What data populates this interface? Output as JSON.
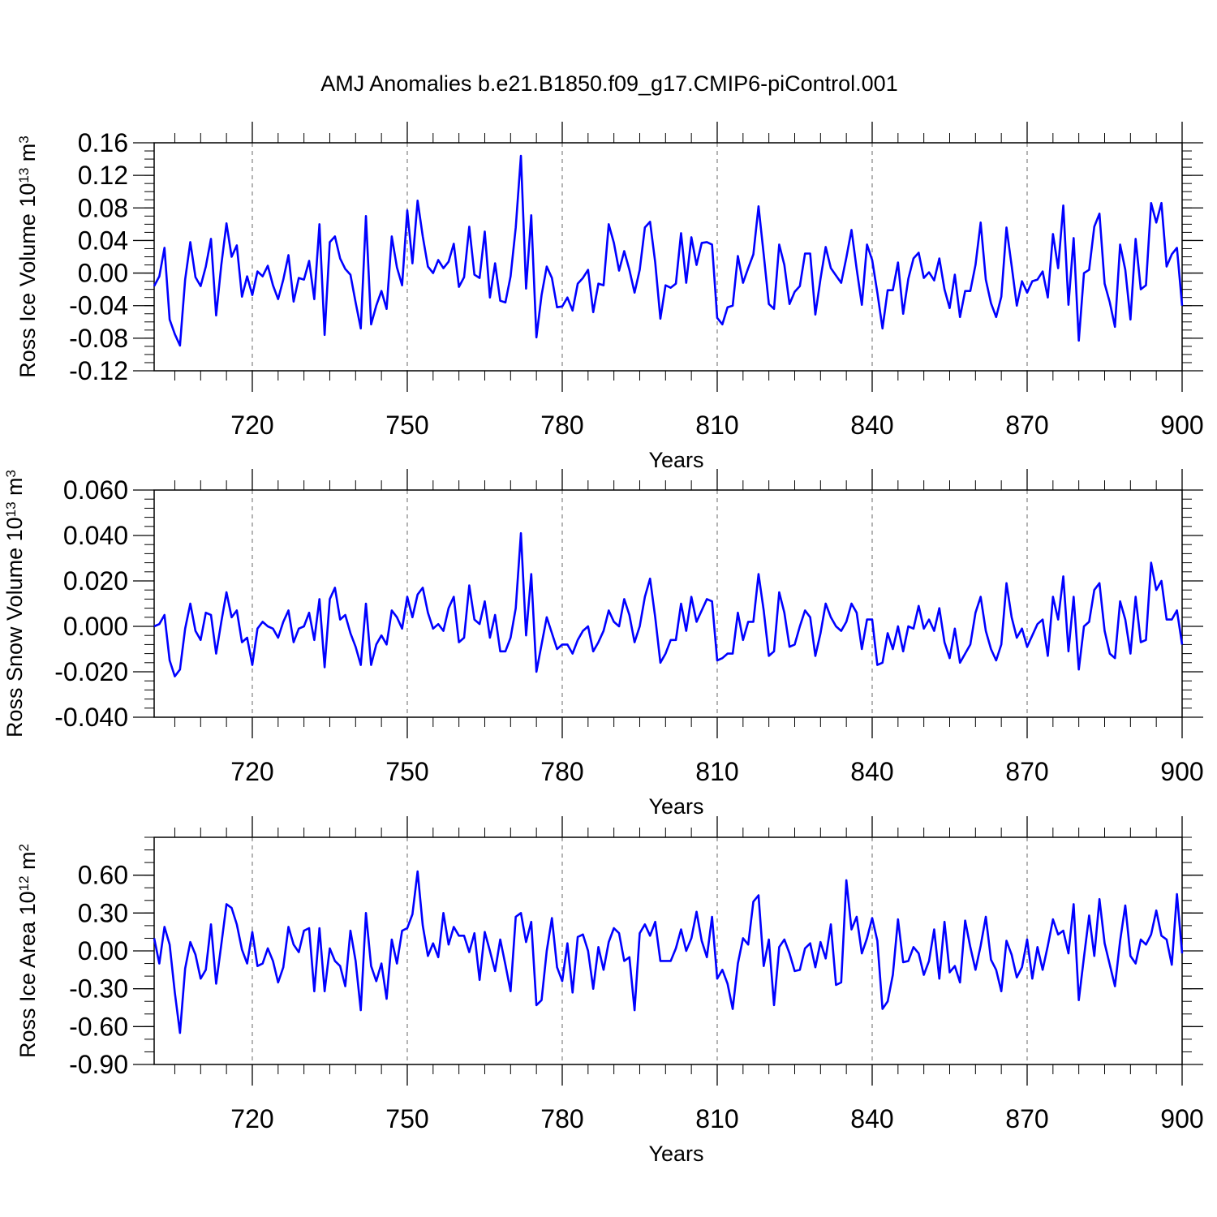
{
  "figure": {
    "title": "AMJ Anomalies b.e21.B1850.f09_g17.CMIP6-piControl.001"
  },
  "styles": {
    "line_color": "#0000ff",
    "axis_color": "#000000",
    "grid_color": "#808080"
  },
  "chart_data": [
    {
      "type": "line",
      "title": "AMJ Anomalies b.e21.B1850.f09_g17.CMIP6-piControl.001",
      "ylabel_main": "Ross Ice Volume 10",
      "ylabel_exp": "13",
      "ylabel_unit": "m",
      "ylabel_unit_exp": "3",
      "xlabel": "Years",
      "xlim": [
        701,
        900
      ],
      "ylim": [
        -0.12,
        0.16
      ],
      "x_ticks": [
        "720",
        "750",
        "780",
        "810",
        "840",
        "870",
        "900"
      ],
      "x_tick_values": [
        720,
        750,
        780,
        810,
        840,
        870,
        900
      ],
      "y_ticks": [
        "0.16",
        "0.12",
        "0.08",
        "0.04",
        "0.00",
        "-0.04",
        "-0.08",
        "-0.12"
      ],
      "y_tick_values": [
        0.16,
        0.12,
        0.08,
        0.04,
        0.0,
        -0.04,
        -0.08,
        -0.12
      ],
      "y_minor_step": 0.01,
      "grid": "vertical dashed",
      "series": [
        {
          "name": "Ross Ice Volume",
          "x_start": 701,
          "x_step": 1,
          "values": [
            -0.016,
            -0.004,
            0.031,
            -0.057,
            -0.075,
            -0.089,
            -0.008,
            0.038,
            -0.005,
            -0.016,
            0.008,
            0.042,
            -0.052,
            0.01,
            0.061,
            0.02,
            0.034,
            -0.029,
            -0.004,
            -0.027,
            0.002,
            -0.004,
            0.009,
            -0.015,
            -0.032,
            -0.008,
            0.022,
            -0.035,
            -0.006,
            -0.008,
            0.015,
            -0.032,
            0.06,
            -0.076,
            0.038,
            0.045,
            0.018,
            0.005,
            -0.002,
            -0.036,
            -0.068,
            0.07,
            -0.063,
            -0.04,
            -0.022,
            -0.044,
            0.045,
            0.007,
            -0.015,
            0.077,
            0.012,
            0.089,
            0.045,
            0.008,
            0.0,
            0.016,
            0.006,
            0.014,
            0.036,
            -0.017,
            -0.005,
            0.057,
            -0.002,
            -0.006,
            0.051,
            -0.03,
            0.012,
            -0.034,
            -0.036,
            -0.004,
            0.056,
            0.144,
            -0.019,
            0.071,
            -0.079,
            -0.027,
            0.008,
            -0.006,
            -0.042,
            -0.041,
            -0.03,
            -0.046,
            -0.013,
            -0.006,
            0.004,
            -0.048,
            -0.013,
            -0.015,
            0.06,
            0.037,
            0.003,
            0.027,
            0.004,
            -0.024,
            0.004,
            0.056,
            0.063,
            0.013,
            -0.056,
            -0.015,
            -0.018,
            -0.013,
            0.049,
            -0.012,
            0.044,
            0.01,
            0.037,
            0.038,
            0.035,
            -0.055,
            -0.063,
            -0.042,
            -0.04,
            0.021,
            -0.012,
            0.006,
            0.023,
            0.082,
            0.023,
            -0.038,
            -0.044,
            0.035,
            0.01,
            -0.038,
            -0.023,
            -0.016,
            0.024,
            0.024,
            -0.051,
            -0.007,
            0.032,
            0.006,
            -0.003,
            -0.012,
            0.019,
            0.053,
            0.005,
            -0.039,
            0.035,
            0.016,
            -0.024,
            -0.068,
            -0.021,
            -0.021,
            0.013,
            -0.05,
            -0.007,
            0.018,
            0.025,
            -0.006,
            0.001,
            -0.009,
            0.018,
            -0.02,
            -0.043,
            -0.002,
            -0.054,
            -0.022,
            -0.022,
            0.01,
            0.062,
            -0.008,
            -0.037,
            -0.054,
            -0.029,
            0.056,
            0.009,
            -0.04,
            -0.01,
            -0.024,
            -0.01,
            -0.008,
            0.002,
            -0.03,
            0.048,
            0.006,
            0.083,
            -0.039,
            0.043,
            -0.083,
            0.0,
            0.004,
            0.057,
            0.073,
            -0.013,
            -0.036,
            -0.066,
            0.035,
            0.004,
            -0.057,
            0.042,
            -0.02,
            -0.015,
            0.086,
            0.062,
            0.086,
            0.008,
            0.023,
            0.031,
            -0.04
          ]
        }
      ]
    },
    {
      "type": "line",
      "ylabel_main": "Ross Snow Volume 10",
      "ylabel_exp": "13",
      "ylabel_unit": "m",
      "ylabel_unit_exp": "3",
      "xlabel": "Years",
      "xlim": [
        701,
        900
      ],
      "ylim": [
        -0.04,
        0.06
      ],
      "x_ticks": [
        "720",
        "750",
        "780",
        "810",
        "840",
        "870",
        "900"
      ],
      "x_tick_values": [
        720,
        750,
        780,
        810,
        840,
        870,
        900
      ],
      "y_ticks": [
        "0.060",
        "0.040",
        "0.020",
        "0.000",
        "-0.020",
        "-0.040"
      ],
      "y_tick_values": [
        0.06,
        0.04,
        0.02,
        0.0,
        -0.02,
        -0.04
      ],
      "y_minor_step": 0.004,
      "grid": "vertical dashed",
      "series": [
        {
          "name": "Ross Snow Volume",
          "x_start": 701,
          "x_step": 1,
          "values": [
            0.0,
            0.001,
            0.005,
            -0.015,
            -0.022,
            -0.019,
            -0.001,
            0.01,
            -0.002,
            -0.006,
            0.006,
            0.005,
            -0.012,
            0.002,
            0.015,
            0.004,
            0.007,
            -0.007,
            -0.005,
            -0.017,
            -0.001,
            0.002,
            0.0,
            -0.001,
            -0.005,
            0.002,
            0.007,
            -0.007,
            -0.001,
            0.0,
            0.006,
            -0.006,
            0.012,
            -0.018,
            0.012,
            0.017,
            0.003,
            0.005,
            -0.003,
            -0.009,
            -0.017,
            0.01,
            -0.017,
            -0.008,
            -0.004,
            -0.008,
            0.007,
            0.004,
            -0.001,
            0.013,
            0.004,
            0.014,
            0.017,
            0.006,
            -0.001,
            0.001,
            -0.002,
            0.008,
            0.013,
            -0.007,
            -0.005,
            0.018,
            0.003,
            0.001,
            0.011,
            -0.005,
            0.005,
            -0.011,
            -0.011,
            -0.005,
            0.008,
            0.041,
            -0.004,
            0.023,
            -0.02,
            -0.008,
            0.004,
            -0.003,
            -0.01,
            -0.008,
            -0.008,
            -0.012,
            -0.006,
            -0.002,
            0.0,
            -0.011,
            -0.007,
            -0.002,
            0.007,
            0.002,
            0.0,
            0.012,
            0.005,
            -0.007,
            0.0,
            0.013,
            0.021,
            0.004,
            -0.016,
            -0.012,
            -0.006,
            -0.006,
            0.01,
            -0.002,
            0.013,
            0.002,
            0.007,
            0.012,
            0.011,
            -0.015,
            -0.014,
            -0.012,
            -0.012,
            0.006,
            -0.006,
            0.002,
            0.002,
            0.023,
            0.007,
            -0.013,
            -0.011,
            0.015,
            0.006,
            -0.009,
            -0.008,
            0.0,
            0.007,
            0.004,
            -0.013,
            -0.003,
            0.01,
            0.004,
            0.0,
            -0.002,
            0.002,
            0.01,
            0.006,
            -0.01,
            0.003,
            0.003,
            -0.017,
            -0.016,
            -0.003,
            -0.01,
            0.0,
            -0.011,
            0.0,
            -0.001,
            0.009,
            -0.001,
            0.003,
            -0.002,
            0.008,
            -0.007,
            -0.014,
            -0.001,
            -0.016,
            -0.012,
            -0.008,
            0.006,
            0.013,
            -0.002,
            -0.01,
            -0.015,
            -0.008,
            0.019,
            0.004,
            -0.005,
            -0.001,
            -0.009,
            -0.004,
            0.001,
            0.003,
            -0.013,
            0.013,
            0.003,
            0.022,
            -0.011,
            0.013,
            -0.019,
            0.0,
            0.002,
            0.016,
            0.019,
            -0.002,
            -0.012,
            -0.014,
            0.011,
            0.003,
            -0.012,
            0.013,
            -0.007,
            -0.006,
            0.028,
            0.016,
            0.02,
            0.003,
            0.003,
            0.007,
            -0.008
          ]
        }
      ]
    },
    {
      "type": "line",
      "ylabel_main": "Ross Ice Area 10",
      "ylabel_exp": "12",
      "ylabel_unit": "m",
      "ylabel_unit_exp": "2",
      "xlabel": "Years",
      "xlim": [
        701,
        900
      ],
      "ylim": [
        -0.9,
        0.9
      ],
      "x_ticks": [
        "720",
        "750",
        "780",
        "810",
        "840",
        "870",
        "900"
      ],
      "x_tick_values": [
        720,
        750,
        780,
        810,
        840,
        870,
        900
      ],
      "y_ticks": [
        "0.60",
        "0.30",
        "0.00",
        "-0.30",
        "-0.60",
        "-0.90"
      ],
      "y_tick_values": [
        0.6,
        0.3,
        0.0,
        -0.3,
        -0.6,
        -0.9
      ],
      "y_minor_step": 0.1,
      "grid": "vertical dashed",
      "series": [
        {
          "name": "Ross Ice Area",
          "x_start": 701,
          "x_step": 1,
          "values": [
            0.1,
            -0.1,
            0.19,
            0.05,
            -0.33,
            -0.65,
            -0.14,
            0.07,
            -0.03,
            -0.22,
            -0.15,
            0.21,
            -0.26,
            0.05,
            0.37,
            0.34,
            0.21,
            0.01,
            -0.1,
            0.15,
            -0.12,
            -0.1,
            0.02,
            -0.08,
            -0.25,
            -0.13,
            0.19,
            0.05,
            -0.01,
            0.16,
            0.18,
            -0.32,
            0.18,
            -0.32,
            0.02,
            -0.08,
            -0.12,
            -0.28,
            0.16,
            -0.08,
            -0.47,
            0.3,
            -0.12,
            -0.24,
            -0.1,
            -0.38,
            0.09,
            -0.1,
            0.16,
            0.18,
            0.29,
            0.63,
            0.2,
            -0.04,
            0.06,
            -0.05,
            0.3,
            0.05,
            0.19,
            0.12,
            0.12,
            -0.01,
            0.14,
            -0.23,
            0.15,
            0.0,
            -0.16,
            0.09,
            -0.11,
            -0.32,
            0.27,
            0.3,
            0.07,
            0.23,
            -0.43,
            -0.39,
            0.0,
            0.26,
            -0.13,
            -0.24,
            0.06,
            -0.33,
            0.11,
            0.13,
            0.0,
            -0.3,
            0.03,
            -0.15,
            0.07,
            0.18,
            0.14,
            -0.08,
            -0.05,
            -0.47,
            0.14,
            0.21,
            0.12,
            0.23,
            -0.08,
            -0.08,
            -0.08,
            0.02,
            0.17,
            0.0,
            0.1,
            0.31,
            0.08,
            -0.05,
            0.27,
            -0.22,
            -0.15,
            -0.26,
            -0.46,
            -0.1,
            0.1,
            0.05,
            0.39,
            0.44,
            -0.12,
            0.09,
            -0.43,
            0.03,
            0.09,
            -0.02,
            -0.16,
            -0.15,
            0.02,
            0.06,
            -0.13,
            0.07,
            -0.06,
            0.21,
            -0.27,
            -0.25,
            0.56,
            0.17,
            0.27,
            -0.02,
            0.1,
            0.26,
            0.08,
            -0.46,
            -0.4,
            -0.19,
            0.25,
            -0.09,
            -0.08,
            0.03,
            -0.02,
            -0.19,
            -0.08,
            0.17,
            -0.22,
            0.23,
            -0.17,
            -0.12,
            -0.25,
            0.24,
            0.03,
            -0.15,
            0.04,
            0.27,
            -0.07,
            -0.15,
            -0.32,
            0.08,
            -0.03,
            -0.21,
            -0.13,
            0.09,
            -0.22,
            0.03,
            -0.15,
            0.04,
            0.25,
            0.13,
            0.16,
            -0.02,
            0.37,
            -0.39,
            -0.05,
            0.28,
            -0.04,
            0.41,
            0.06,
            -0.11,
            -0.28,
            0.08,
            0.36,
            -0.04,
            -0.1,
            0.09,
            0.05,
            0.13,
            0.32,
            0.12,
            0.09,
            -0.11,
            0.45,
            -0.02
          ]
        }
      ]
    }
  ]
}
